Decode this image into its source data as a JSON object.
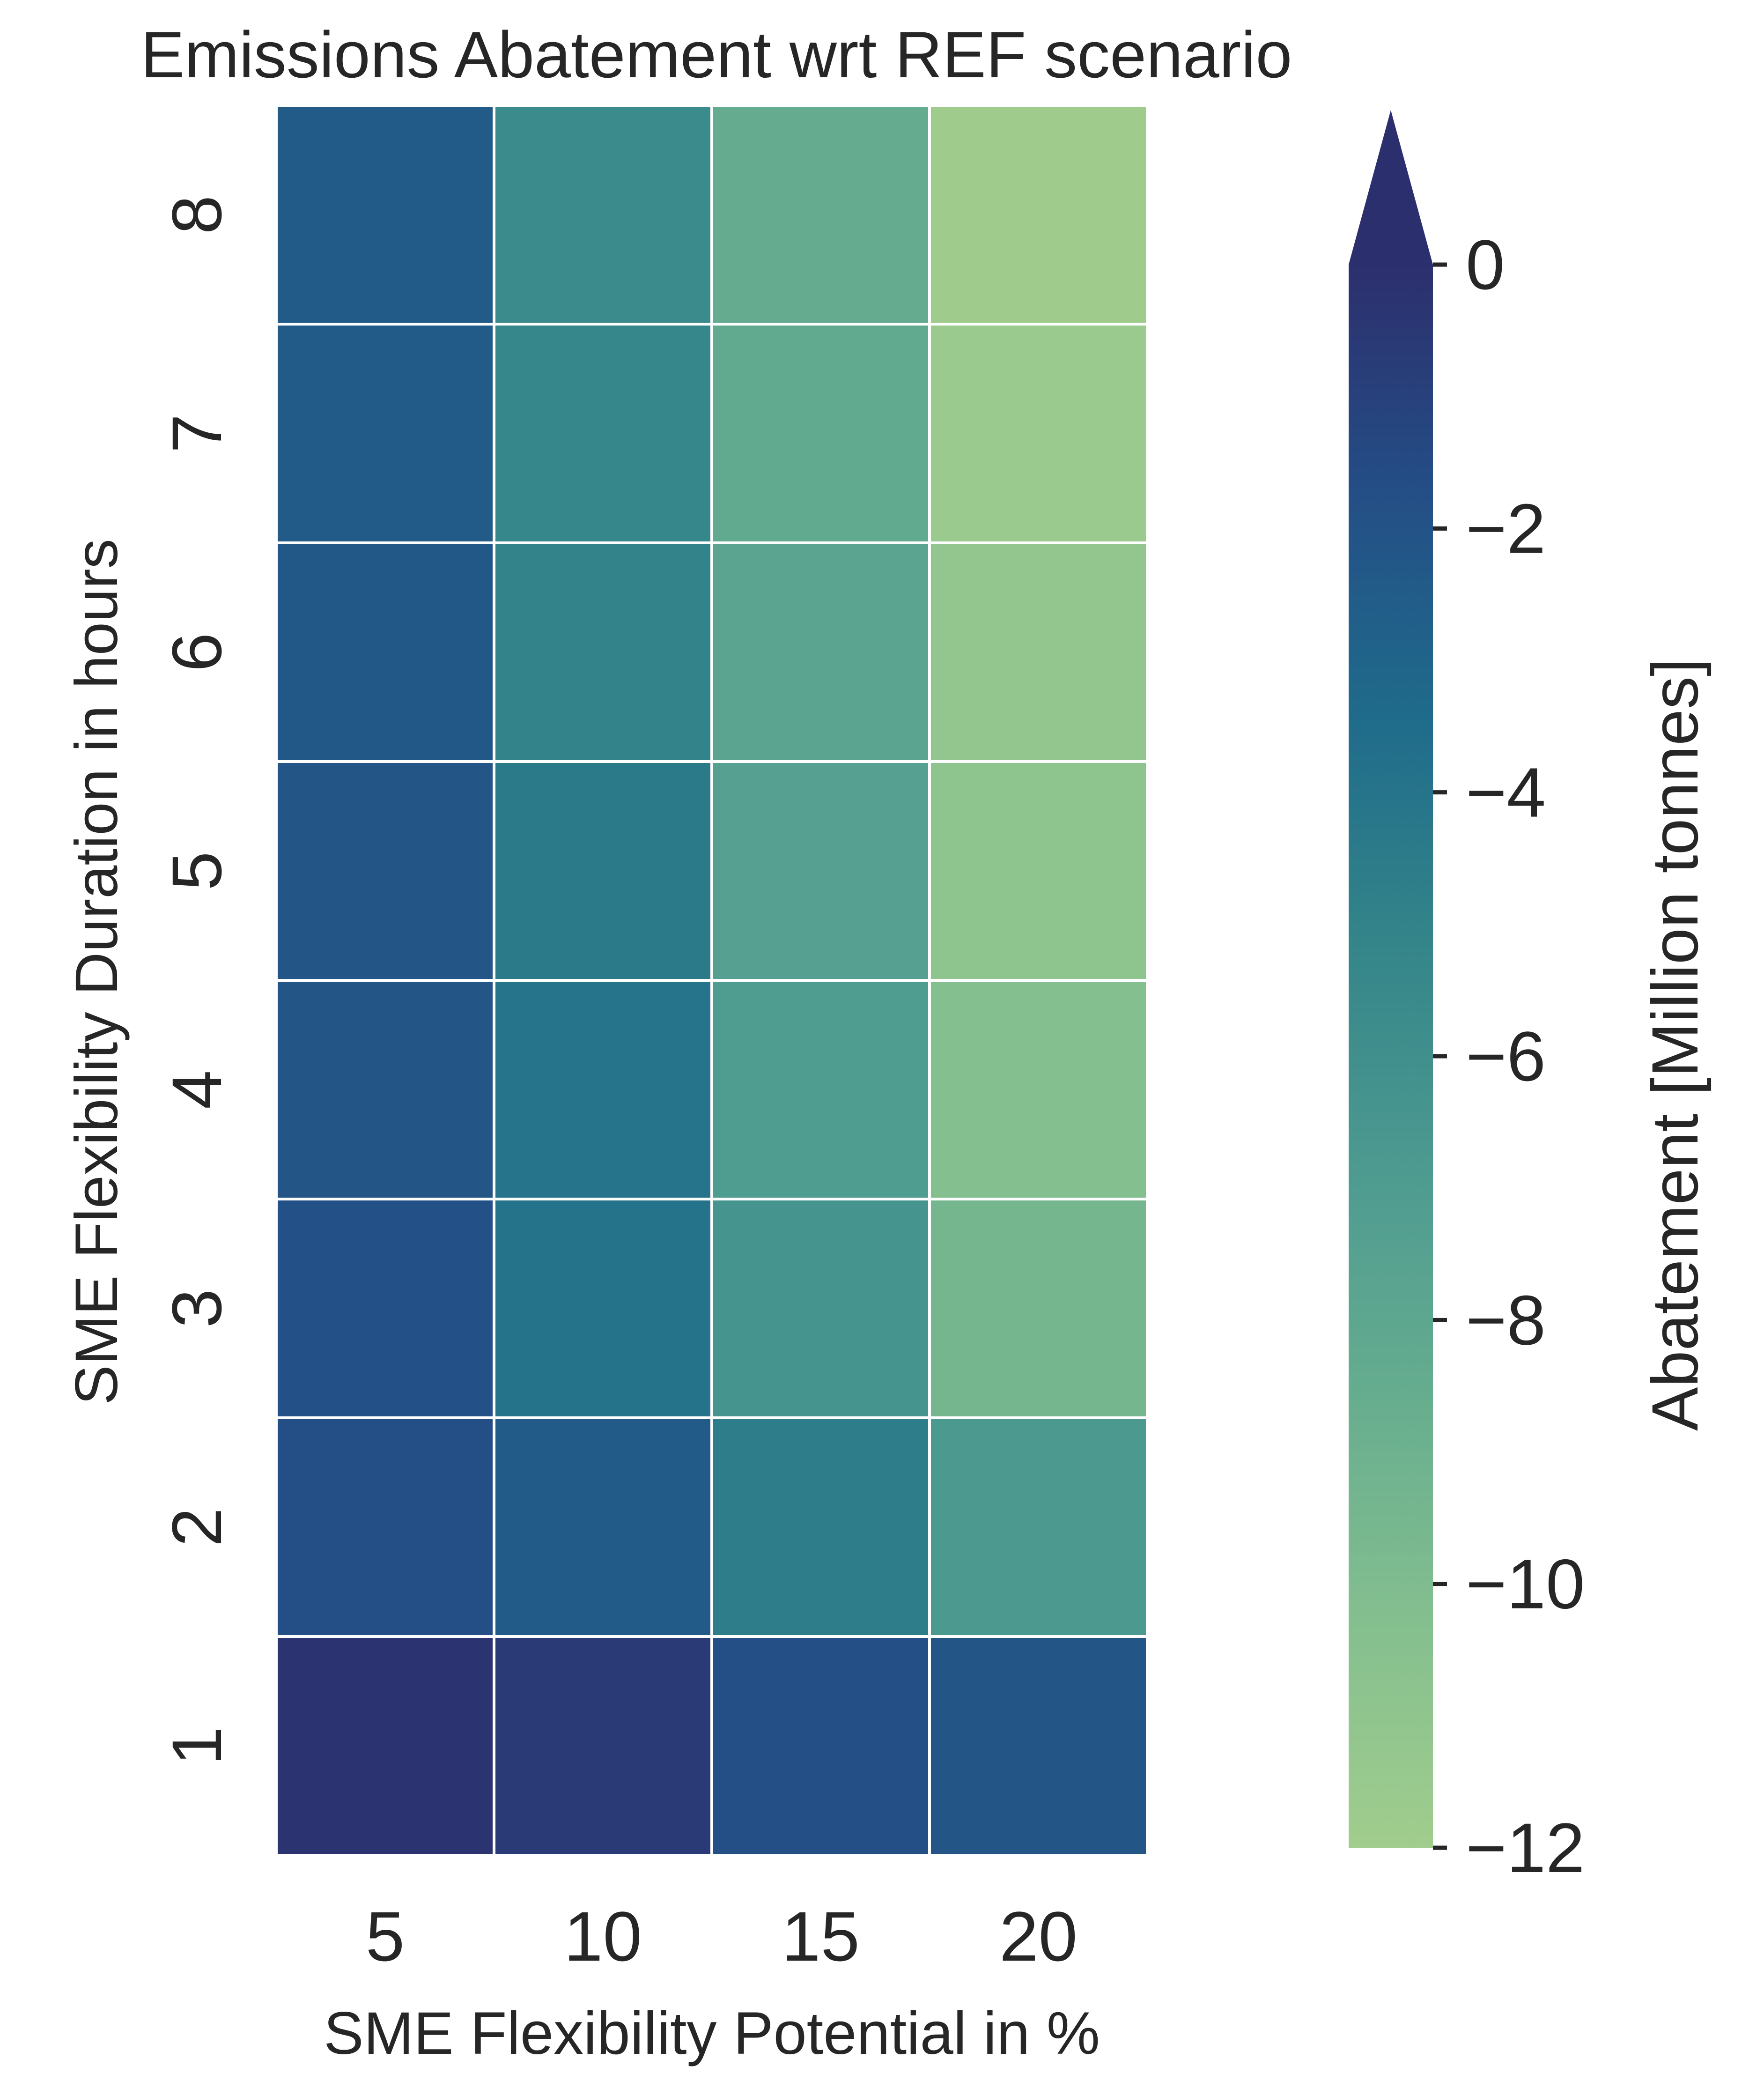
{
  "chart_data": {
    "type": "heatmap",
    "title": "Emissions Abatement wrt REF scenario",
    "xlabel": "SME Flexibility Potential in %",
    "ylabel": "SME Flexibility Duration in hours",
    "x_categories": [
      "5",
      "10",
      "15",
      "20"
    ],
    "y_categories": [
      "1",
      "2",
      "3",
      "4",
      "5",
      "6",
      "7",
      "8"
    ],
    "values": [
      [
        -0.2,
        -0.6,
        -1.8,
        -2.1
      ],
      [
        -1.7,
        -2.4,
        -4.6,
        -6.8
      ],
      [
        -1.9,
        -3.9,
        -6.4,
        -9.4
      ],
      [
        -2.1,
        -4.0,
        -7.0,
        -10.3
      ],
      [
        -2.2,
        -4.4,
        -7.4,
        -10.9
      ],
      [
        -2.3,
        -5.1,
        -7.8,
        -11.2
      ],
      [
        -2.4,
        -5.3,
        -8.2,
        -11.6
      ],
      [
        -2.5,
        -5.6,
        -8.4,
        -11.9
      ]
    ],
    "colorbar": {
      "label": "Abatement [Million tonnes]",
      "min": -12,
      "max": 0,
      "ticks": [
        0,
        -2,
        -4,
        -6,
        -8,
        -10,
        -12
      ],
      "tick_labels": [
        "0",
        "−2",
        "−4",
        "−6",
        "−8",
        "−10",
        "−12"
      ],
      "extend": "max"
    },
    "colormap": [
      "#2c2f6d",
      "#244e86",
      "#1f6b8b",
      "#34858a",
      "#4d9a90",
      "#66ad8f",
      "#84bf8f",
      "#a1cd8d"
    ],
    "grid": false
  }
}
